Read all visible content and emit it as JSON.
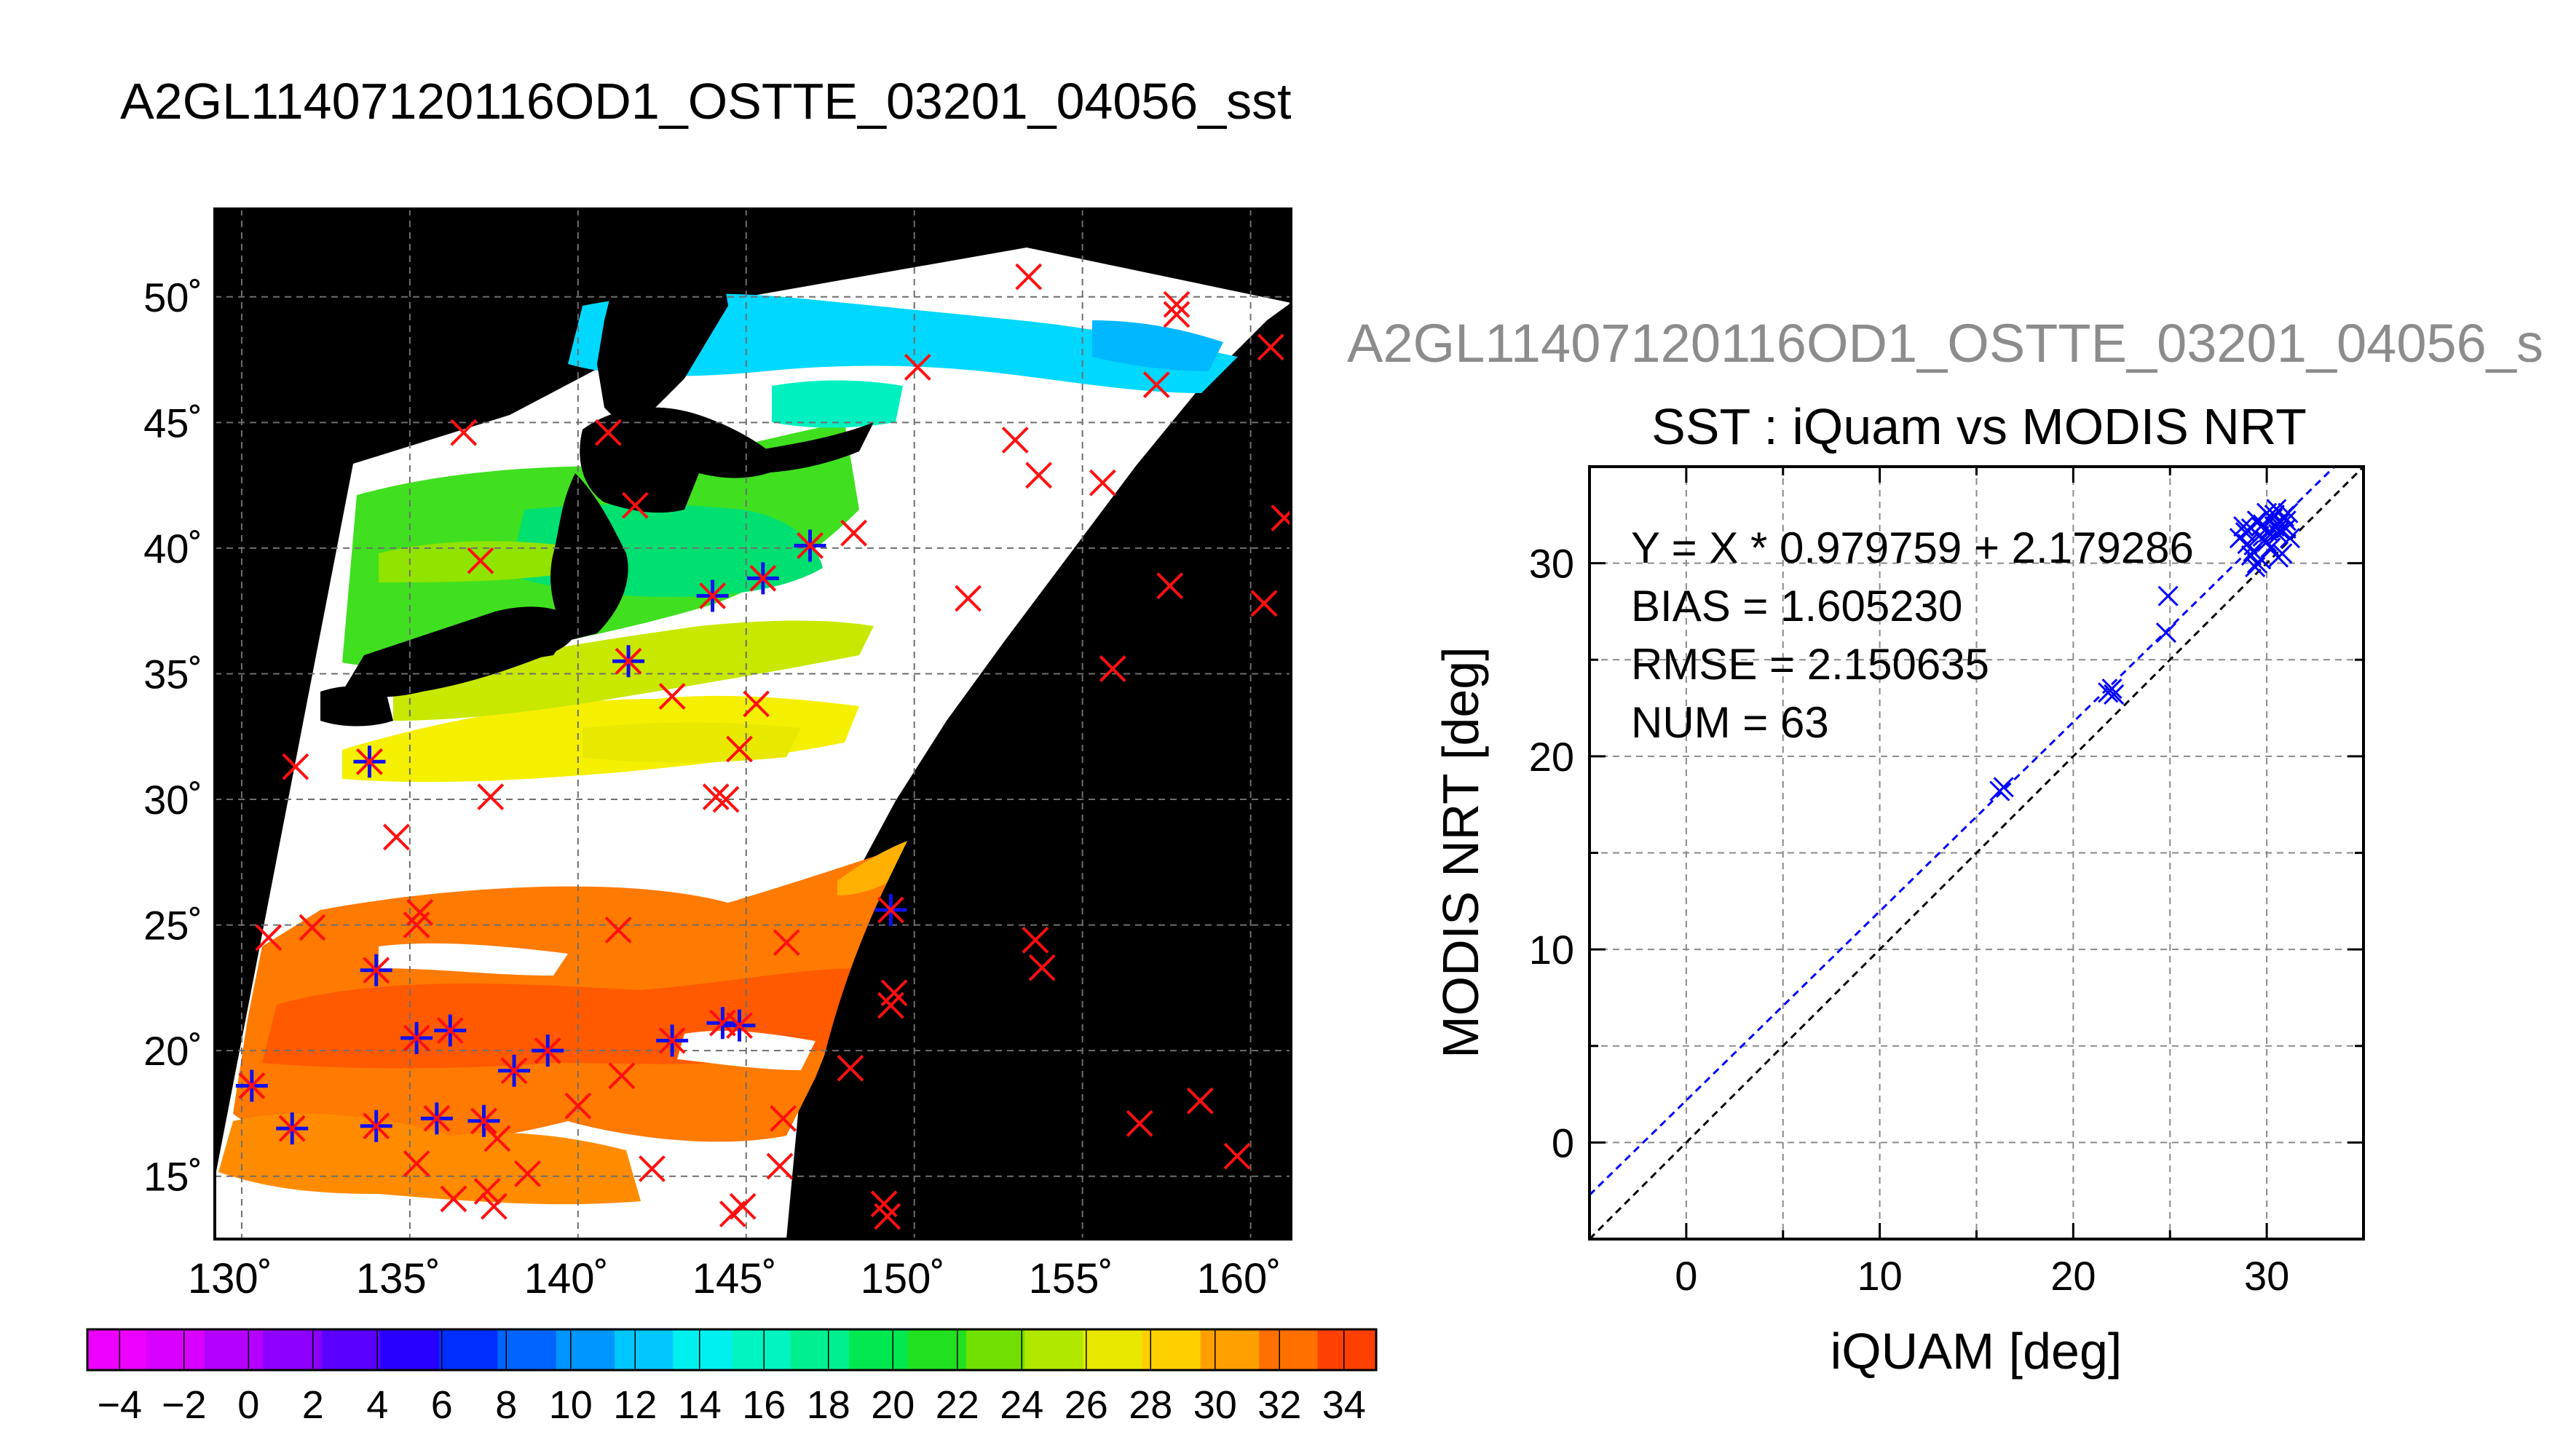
{
  "main_title": "A2GL11407120116OD1_OSTTE_03201_04056_sst",
  "secondary_title": "A2GL11407120116OD1_OSTTE_03201_04056_s",
  "map": {
    "lon_ticks": [
      130,
      135,
      140,
      145,
      150,
      155,
      160
    ],
    "lat_ticks": [
      15,
      20,
      25,
      30,
      35,
      40,
      45,
      50
    ],
    "lon_range": [
      129.2,
      161.2
    ],
    "lat_range": [
      12.5,
      53.5
    ],
    "lon_labels": [
      "130˚",
      "135˚",
      "140˚",
      "145˚",
      "150˚",
      "155˚",
      "160˚"
    ],
    "lat_labels": [
      "15˚",
      "20˚",
      "25˚",
      "30˚",
      "35˚",
      "40˚",
      "45˚",
      "50˚"
    ],
    "background_color": "#000000",
    "grid": true,
    "markers": [
      {
        "lon": 130.3,
        "lat": 18.6,
        "type": "both"
      },
      {
        "lon": 131.5,
        "lat": 16.9,
        "type": "both"
      },
      {
        "lon": 134.0,
        "lat": 23.2,
        "type": "both"
      },
      {
        "lon": 134.0,
        "lat": 17.0,
        "type": "both"
      },
      {
        "lon": 135.2,
        "lat": 20.5,
        "type": "both"
      },
      {
        "lon": 136.2,
        "lat": 20.8,
        "type": "both"
      },
      {
        "lon": 135.8,
        "lat": 17.3,
        "type": "both"
      },
      {
        "lon": 137.2,
        "lat": 17.2,
        "type": "both"
      },
      {
        "lon": 138.1,
        "lat": 19.2,
        "type": "both"
      },
      {
        "lon": 139.1,
        "lat": 20.0,
        "type": "both"
      },
      {
        "lon": 142.8,
        "lat": 20.4,
        "type": "both"
      },
      {
        "lon": 144.3,
        "lat": 21.1,
        "type": "both"
      },
      {
        "lon": 144.8,
        "lat": 21.0,
        "type": "both"
      },
      {
        "lon": 149.3,
        "lat": 25.6,
        "type": "both"
      },
      {
        "lon": 133.8,
        "lat": 31.5,
        "type": "both"
      },
      {
        "lon": 141.5,
        "lat": 35.5,
        "type": "both"
      },
      {
        "lon": 144.0,
        "lat": 38.1,
        "type": "both"
      },
      {
        "lon": 145.5,
        "lat": 38.8,
        "type": "both"
      },
      {
        "lon": 146.9,
        "lat": 40.1,
        "type": "both"
      },
      {
        "lon": 131.6,
        "lat": 31.3,
        "type": "red"
      },
      {
        "lon": 130.8,
        "lat": 24.5,
        "type": "red"
      },
      {
        "lon": 132.1,
        "lat": 24.9,
        "type": "red"
      },
      {
        "lon": 134.6,
        "lat": 28.5,
        "type": "red"
      },
      {
        "lon": 135.2,
        "lat": 25.0,
        "type": "red"
      },
      {
        "lon": 135.3,
        "lat": 25.5,
        "type": "red"
      },
      {
        "lon": 137.4,
        "lat": 30.1,
        "type": "red"
      },
      {
        "lon": 136.6,
        "lat": 44.6,
        "type": "red"
      },
      {
        "lon": 137.1,
        "lat": 39.5,
        "type": "red"
      },
      {
        "lon": 140.9,
        "lat": 44.6,
        "type": "red"
      },
      {
        "lon": 141.7,
        "lat": 41.7,
        "type": "red"
      },
      {
        "lon": 142.8,
        "lat": 34.1,
        "type": "red"
      },
      {
        "lon": 144.1,
        "lat": 30.1,
        "type": "red"
      },
      {
        "lon": 144.4,
        "lat": 30.0,
        "type": "red"
      },
      {
        "lon": 144.8,
        "lat": 32.0,
        "type": "red"
      },
      {
        "lon": 145.3,
        "lat": 33.8,
        "type": "red"
      },
      {
        "lon": 148.2,
        "lat": 40.6,
        "type": "red"
      },
      {
        "lon": 146.2,
        "lat": 24.3,
        "type": "red"
      },
      {
        "lon": 141.2,
        "lat": 24.8,
        "type": "red"
      },
      {
        "lon": 140.0,
        "lat": 17.8,
        "type": "red"
      },
      {
        "lon": 141.3,
        "lat": 19.0,
        "type": "red"
      },
      {
        "lon": 137.6,
        "lat": 16.5,
        "type": "red"
      },
      {
        "lon": 138.5,
        "lat": 15.1,
        "type": "red"
      },
      {
        "lon": 135.2,
        "lat": 15.5,
        "type": "red"
      },
      {
        "lon": 136.3,
        "lat": 14.1,
        "type": "red"
      },
      {
        "lon": 137.3,
        "lat": 14.4,
        "type": "red"
      },
      {
        "lon": 137.5,
        "lat": 13.8,
        "type": "red"
      },
      {
        "lon": 142.2,
        "lat": 15.3,
        "type": "red"
      },
      {
        "lon": 144.6,
        "lat": 13.5,
        "type": "red"
      },
      {
        "lon": 144.9,
        "lat": 13.8,
        "type": "red"
      },
      {
        "lon": 146.0,
        "lat": 15.4,
        "type": "red"
      },
      {
        "lon": 146.1,
        "lat": 17.3,
        "type": "red"
      },
      {
        "lon": 148.1,
        "lat": 19.3,
        "type": "red"
      },
      {
        "lon": 149.3,
        "lat": 21.8,
        "type": "red"
      },
      {
        "lon": 149.4,
        "lat": 22.3,
        "type": "red"
      },
      {
        "lon": 149.2,
        "lat": 13.4,
        "type": "red"
      },
      {
        "lon": 149.1,
        "lat": 13.9,
        "type": "red"
      },
      {
        "lon": 150.1,
        "lat": 47.2,
        "type": "red"
      },
      {
        "lon": 151.6,
        "lat": 38.0,
        "type": "red"
      },
      {
        "lon": 153.0,
        "lat": 44.3,
        "type": "red"
      },
      {
        "lon": 153.7,
        "lat": 42.9,
        "type": "red"
      },
      {
        "lon": 155.6,
        "lat": 42.6,
        "type": "red"
      },
      {
        "lon": 153.6,
        "lat": 24.4,
        "type": "red"
      },
      {
        "lon": 153.8,
        "lat": 23.3,
        "type": "red"
      },
      {
        "lon": 155.9,
        "lat": 35.2,
        "type": "red"
      },
      {
        "lon": 156.7,
        "lat": 17.1,
        "type": "red"
      },
      {
        "lon": 157.2,
        "lat": 46.5,
        "type": "red"
      },
      {
        "lon": 157.6,
        "lat": 38.5,
        "type": "red"
      },
      {
        "lon": 157.8,
        "lat": 49.3,
        "type": "red"
      },
      {
        "lon": 157.8,
        "lat": 49.7,
        "type": "red"
      },
      {
        "lon": 158.5,
        "lat": 18.0,
        "type": "red"
      },
      {
        "lon": 159.6,
        "lat": 15.8,
        "type": "red"
      },
      {
        "lon": 160.4,
        "lat": 37.8,
        "type": "red"
      },
      {
        "lon": 160.6,
        "lat": 48.0,
        "type": "red"
      },
      {
        "lon": 161.0,
        "lat": 41.2,
        "type": "red"
      },
      {
        "lon": 153.4,
        "lat": 50.8,
        "type": "red"
      }
    ]
  },
  "colorbar": {
    "min": -5,
    "max": 35,
    "labels": [
      "−4",
      "−2",
      "0",
      "2",
      "4",
      "6",
      "8",
      "10",
      "12",
      "14",
      "16",
      "18",
      "20",
      "22",
      "24",
      "26",
      "28",
      "30",
      "32",
      "34"
    ],
    "label_values": [
      -4,
      -2,
      0,
      2,
      4,
      6,
      8,
      10,
      12,
      14,
      16,
      18,
      20,
      22,
      24,
      26,
      28,
      30,
      32,
      34
    ],
    "colors": [
      "#ee00ff",
      "#d800ff",
      "#b400ff",
      "#8c00ff",
      "#5a00ff",
      "#2800ff",
      "#0030ff",
      "#0064ff",
      "#0096ff",
      "#00c8ff",
      "#00f0f0",
      "#00f5c0",
      "#00f090",
      "#00e850",
      "#20e020",
      "#70e000",
      "#b0e800",
      "#e8e800",
      "#ffd000",
      "#ffa000",
      "#ff7000",
      "#ff4000"
    ]
  },
  "scatter": {
    "title": "SST : iQuam vs MODIS NRT",
    "xlabel": "iQUAM [deg]",
    "ylabel": "MODIS NRT [deg]",
    "xlim": [
      -5,
      35
    ],
    "ylim": [
      -5,
      35
    ],
    "xticks": [
      0,
      10,
      20,
      30
    ],
    "yticks": [
      0,
      10,
      20,
      30
    ],
    "annotations": [
      "Y = X * 0.979759 + 2.179286",
      "BIAS = 1.605230",
      "RMSE = 2.150635",
      "NUM = 63"
    ],
    "fit": {
      "slope": 0.979759,
      "intercept": 2.179286
    },
    "fit_color": "#0000ff",
    "identity_color": "#000000",
    "marker_color": "#0000ff",
    "points": [
      [
        16.2,
        18.2
      ],
      [
        16.4,
        18.4
      ],
      [
        21.8,
        23.3
      ],
      [
        22.0,
        23.5
      ],
      [
        22.1,
        23.2
      ],
      [
        24.9,
        28.3
      ],
      [
        24.8,
        26.4
      ],
      [
        28.6,
        31.3
      ],
      [
        28.9,
        31.6
      ],
      [
        29.0,
        31.0
      ],
      [
        29.2,
        31.8
      ],
      [
        29.3,
        30.6
      ],
      [
        29.4,
        29.8
      ],
      [
        29.5,
        32.2
      ],
      [
        29.6,
        31.4
      ],
      [
        29.7,
        30.2
      ],
      [
        29.8,
        32.0
      ],
      [
        29.9,
        31.2
      ],
      [
        30.0,
        32.6
      ],
      [
        30.1,
        31.6
      ],
      [
        30.2,
        30.8
      ],
      [
        30.3,
        32.3
      ],
      [
        30.4,
        31.9
      ],
      [
        30.5,
        32.8
      ],
      [
        30.6,
        31.5
      ],
      [
        30.7,
        32.1
      ],
      [
        30.8,
        30.5
      ],
      [
        30.9,
        32.4
      ],
      [
        31.0,
        31.8
      ],
      [
        31.1,
        32.6
      ],
      [
        31.2,
        31.3
      ],
      [
        29.5,
        30.0
      ],
      [
        29.7,
        31.9
      ],
      [
        30.0,
        31.1
      ],
      [
        30.4,
        32.5
      ],
      [
        30.7,
        31.7
      ],
      [
        31.0,
        32.2
      ],
      [
        28.8,
        31.9
      ],
      [
        29.2,
        30.4
      ],
      [
        30.6,
        30.3
      ]
    ]
  }
}
